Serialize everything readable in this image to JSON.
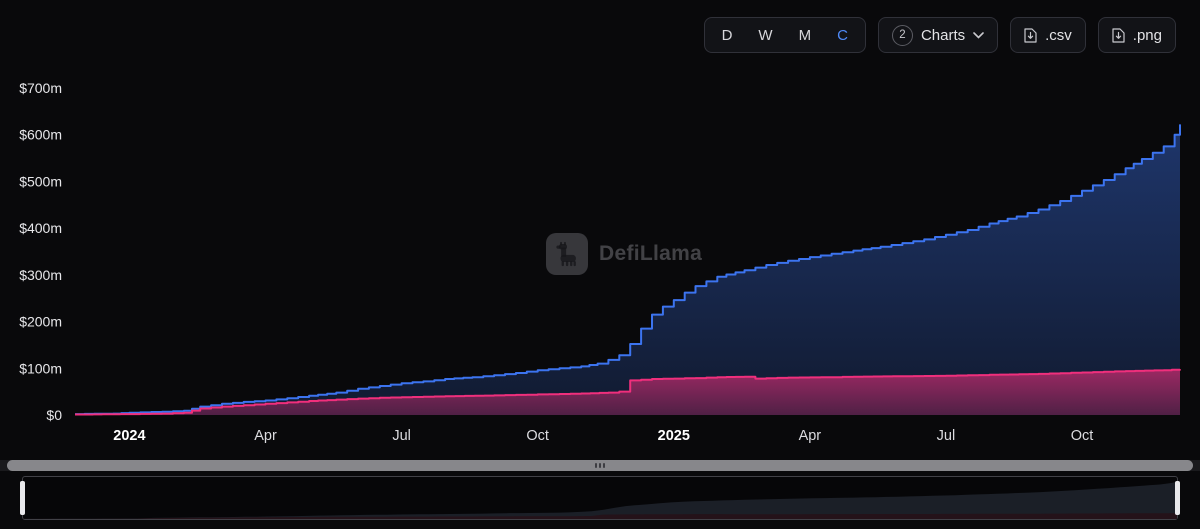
{
  "toolbar": {
    "intervals": [
      {
        "label": "D",
        "active": false
      },
      {
        "label": "W",
        "active": false
      },
      {
        "label": "M",
        "active": false
      },
      {
        "label": "C",
        "active": true
      }
    ],
    "charts_dropdown": {
      "count": "2",
      "label": "Charts"
    },
    "csv_button": ".csv",
    "png_button": ".png"
  },
  "watermark": {
    "text": "DefiLlama"
  },
  "colors": {
    "background": "#09090b",
    "accent_blue": "#4f8af8",
    "series_blue": "#3c74f0",
    "series_pink": "#f02f7c"
  },
  "chart_data": {
    "type": "area",
    "title": "",
    "grid": false,
    "legend_position": "none",
    "xlim": [
      2023.9,
      2025.93
    ],
    "ylim": [
      0,
      700
    ],
    "y_ticks": [
      {
        "v": 700,
        "label": "$700m"
      },
      {
        "v": 600,
        "label": "$600m"
      },
      {
        "v": 500,
        "label": "$500m"
      },
      {
        "v": 400,
        "label": "$400m"
      },
      {
        "v": 300,
        "label": "$300m"
      },
      {
        "v": 200,
        "label": "$200m"
      },
      {
        "v": 100,
        "label": "$100m"
      },
      {
        "v": 0,
        "label": "$0"
      }
    ],
    "x_ticks": [
      {
        "t": 2024.0,
        "label": "2024",
        "bold": true
      },
      {
        "t": 2024.25,
        "label": "Apr",
        "bold": false
      },
      {
        "t": 2024.5,
        "label": "Jul",
        "bold": false
      },
      {
        "t": 2024.75,
        "label": "Oct",
        "bold": false
      },
      {
        "t": 2025.0,
        "label": "2025",
        "bold": true
      },
      {
        "t": 2025.25,
        "label": "Apr",
        "bold": false
      },
      {
        "t": 2025.5,
        "label": "Jul",
        "bold": false
      },
      {
        "t": 2025.75,
        "label": "Oct",
        "bold": false
      }
    ],
    "series": [
      {
        "name": "blue-series",
        "color": "#3c74f0",
        "fill_opacity_top": 0.42,
        "fill_opacity_bottom": 0.16,
        "mini_fill": "#1b1f27",
        "points": [
          [
            2023.9,
            2
          ],
          [
            2023.97,
            3
          ],
          [
            2024.0,
            5
          ],
          [
            2024.06,
            7
          ],
          [
            2024.1,
            9
          ],
          [
            2024.13,
            18
          ],
          [
            2024.17,
            24
          ],
          [
            2024.21,
            28
          ],
          [
            2024.25,
            31
          ],
          [
            2024.29,
            36
          ],
          [
            2024.33,
            41
          ],
          [
            2024.38,
            48
          ],
          [
            2024.42,
            56
          ],
          [
            2024.46,
            62
          ],
          [
            2024.5,
            68
          ],
          [
            2024.54,
            72
          ],
          [
            2024.58,
            77
          ],
          [
            2024.63,
            81
          ],
          [
            2024.67,
            85
          ],
          [
            2024.71,
            90
          ],
          [
            2024.75,
            96
          ],
          [
            2024.79,
            100
          ],
          [
            2024.83,
            104
          ],
          [
            2024.86,
            110
          ],
          [
            2024.88,
            118
          ],
          [
            2024.9,
            128
          ],
          [
            2024.92,
            152
          ],
          [
            2024.94,
            185
          ],
          [
            2024.96,
            215
          ],
          [
            2024.98,
            232
          ],
          [
            2025.0,
            246
          ],
          [
            2025.02,
            262
          ],
          [
            2025.04,
            276
          ],
          [
            2025.08,
            296
          ],
          [
            2025.13,
            310
          ],
          [
            2025.17,
            321
          ],
          [
            2025.21,
            330
          ],
          [
            2025.25,
            338
          ],
          [
            2025.29,
            345
          ],
          [
            2025.33,
            352
          ],
          [
            2025.38,
            360
          ],
          [
            2025.42,
            368
          ],
          [
            2025.46,
            376
          ],
          [
            2025.5,
            386
          ],
          [
            2025.54,
            396
          ],
          [
            2025.58,
            410
          ],
          [
            2025.63,
            425
          ],
          [
            2025.67,
            440
          ],
          [
            2025.71,
            458
          ],
          [
            2025.75,
            480
          ],
          [
            2025.79,
            503
          ],
          [
            2025.83,
            528
          ],
          [
            2025.86,
            548
          ],
          [
            2025.9,
            575
          ],
          [
            2025.92,
            600
          ],
          [
            2025.93,
            622
          ]
        ]
      },
      {
        "name": "pink-series",
        "color": "#f02f7c",
        "fill_opacity_top": 0.62,
        "fill_opacity_bottom": 0.28,
        "mini_fill": "#241219",
        "points": [
          [
            2023.9,
            1
          ],
          [
            2024.0,
            2
          ],
          [
            2024.06,
            3
          ],
          [
            2024.1,
            5
          ],
          [
            2024.13,
            14
          ],
          [
            2024.17,
            18
          ],
          [
            2024.21,
            21
          ],
          [
            2024.25,
            24
          ],
          [
            2024.29,
            27
          ],
          [
            2024.33,
            30
          ],
          [
            2024.38,
            33
          ],
          [
            2024.42,
            35
          ],
          [
            2024.46,
            37
          ],
          [
            2024.5,
            38
          ],
          [
            2024.58,
            40
          ],
          [
            2024.67,
            42
          ],
          [
            2024.75,
            44
          ],
          [
            2024.83,
            46
          ],
          [
            2024.88,
            48
          ],
          [
            2024.9,
            50
          ],
          [
            2024.92,
            74
          ],
          [
            2024.96,
            77
          ],
          [
            2025.0,
            78
          ],
          [
            2025.04,
            79
          ],
          [
            2025.08,
            81
          ],
          [
            2025.13,
            82
          ],
          [
            2025.15,
            78
          ],
          [
            2025.21,
            80
          ],
          [
            2025.29,
            81
          ],
          [
            2025.33,
            82
          ],
          [
            2025.42,
            83
          ],
          [
            2025.5,
            84
          ],
          [
            2025.58,
            86
          ],
          [
            2025.67,
            88
          ],
          [
            2025.75,
            91
          ],
          [
            2025.83,
            94
          ],
          [
            2025.9,
            96
          ],
          [
            2025.93,
            98
          ]
        ]
      }
    ]
  }
}
